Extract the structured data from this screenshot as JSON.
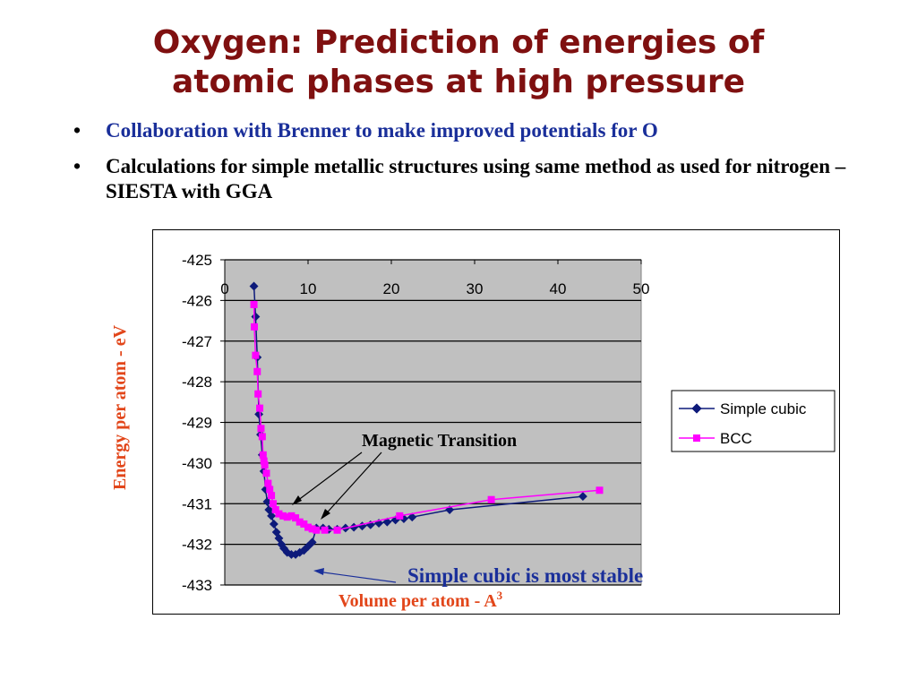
{
  "slide": {
    "title_line1": "Oxygen:  Prediction of energies of",
    "title_line2": "atomic phases at high pressure",
    "bullets": [
      {
        "marker": "•",
        "text": "Collaboration with Brenner to make improved potentials for O"
      },
      {
        "marker": "•",
        "text": "Calculations for simple metallic structures using same method as used for nitrogen – SIESTA with GGA"
      }
    ],
    "annotations": {
      "magnetic_transition": "Magnetic Transition",
      "simple_cubic_stable": "Simple cubic is most stable"
    }
  },
  "colors": {
    "title": "#7f1010",
    "bullet1": "#1a2f9a",
    "axis_label": "#e2461a",
    "simple_cubic": "#0d1a7a",
    "bcc": "#ff00ff",
    "plot_bg": "#c0c0c0",
    "annotation_blue": "#1a2f9a"
  },
  "chart_data": {
    "type": "scatter",
    "ylabel": "Energy per atom - eV",
    "xlabel_text": "Volume per atom - A",
    "xlabel_sup": "3",
    "x_ticks": [
      "0",
      "10",
      "20",
      "30",
      "40",
      "50"
    ],
    "y_ticks": [
      "-425",
      "-426",
      "-427",
      "-428",
      "-429",
      "-430",
      "-431",
      "-432",
      "-433"
    ],
    "xlim": [
      0,
      50
    ],
    "ylim": [
      -433,
      -425
    ],
    "grid": "horizontal",
    "legend_position": "right",
    "series": [
      {
        "name": "Simple cubic",
        "marker": "diamond",
        "points": [
          [
            3.5,
            -425.65
          ],
          [
            3.7,
            -426.4
          ],
          [
            3.9,
            -427.4
          ],
          [
            4.1,
            -428.8
          ],
          [
            4.3,
            -429.3
          ],
          [
            4.5,
            -429.8
          ],
          [
            4.7,
            -430.2
          ],
          [
            4.9,
            -430.65
          ],
          [
            5.1,
            -430.95
          ],
          [
            5.3,
            -431.15
          ],
          [
            5.6,
            -431.3
          ],
          [
            5.9,
            -431.5
          ],
          [
            6.2,
            -431.7
          ],
          [
            6.5,
            -431.85
          ],
          [
            6.8,
            -432.0
          ],
          [
            7.1,
            -432.1
          ],
          [
            7.5,
            -432.2
          ],
          [
            8.0,
            -432.25
          ],
          [
            8.5,
            -432.25
          ],
          [
            9.0,
            -432.2
          ],
          [
            9.5,
            -432.15
          ],
          [
            10.0,
            -432.05
          ],
          [
            10.5,
            -431.95
          ],
          [
            11.0,
            -431.6
          ],
          [
            11.8,
            -431.6
          ],
          [
            12.5,
            -431.63
          ],
          [
            13.5,
            -431.63
          ],
          [
            14.5,
            -431.6
          ],
          [
            15.5,
            -431.58
          ],
          [
            16.5,
            -431.55
          ],
          [
            17.5,
            -431.52
          ],
          [
            18.5,
            -431.48
          ],
          [
            19.5,
            -431.45
          ],
          [
            20.5,
            -431.4
          ],
          [
            21.5,
            -431.37
          ],
          [
            22.5,
            -431.33
          ],
          [
            27.0,
            -431.15
          ],
          [
            43.0,
            -430.82
          ]
        ]
      },
      {
        "name": "BCC",
        "marker": "square",
        "points": [
          [
            3.5,
            -426.1
          ],
          [
            3.55,
            -426.65
          ],
          [
            3.7,
            -427.35
          ],
          [
            3.9,
            -427.75
          ],
          [
            4.0,
            -428.3
          ],
          [
            4.2,
            -428.65
          ],
          [
            4.35,
            -429.15
          ],
          [
            4.5,
            -429.35
          ],
          [
            4.6,
            -429.8
          ],
          [
            4.7,
            -429.95
          ],
          [
            4.8,
            -430.05
          ],
          [
            5.0,
            -430.25
          ],
          [
            5.2,
            -430.5
          ],
          [
            5.4,
            -430.65
          ],
          [
            5.6,
            -430.8
          ],
          [
            5.8,
            -431.0
          ],
          [
            6.1,
            -431.15
          ],
          [
            6.5,
            -431.25
          ],
          [
            7.0,
            -431.3
          ],
          [
            7.5,
            -431.33
          ],
          [
            8.0,
            -431.3
          ],
          [
            8.5,
            -431.35
          ],
          [
            9.0,
            -431.45
          ],
          [
            9.5,
            -431.5
          ],
          [
            10.0,
            -431.58
          ],
          [
            10.5,
            -431.62
          ],
          [
            11.0,
            -431.65
          ],
          [
            12.0,
            -431.65
          ],
          [
            13.5,
            -431.65
          ],
          [
            21.0,
            -431.3
          ],
          [
            32.0,
            -430.9
          ],
          [
            45.0,
            -430.67
          ]
        ]
      }
    ]
  }
}
